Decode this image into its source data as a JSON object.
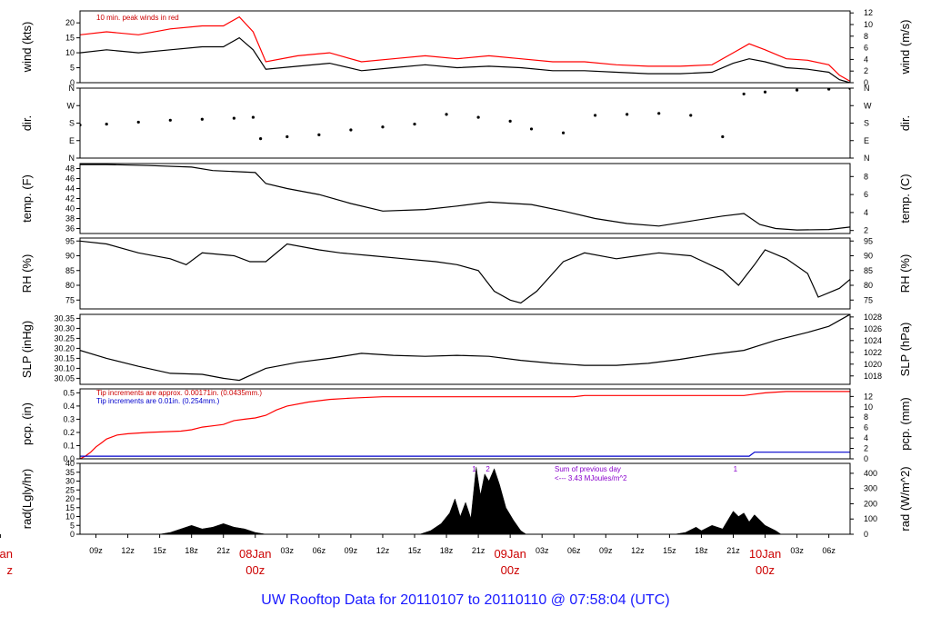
{
  "title": "UW Rooftop Data for 20110107  to  20110110 @ 07:58:04  (UTC)",
  "chart_data": {
    "type": "line",
    "time_axis": {
      "start_hour": 7.5,
      "end_hour": 80,
      "hour_ticks": [
        {
          "h": 9,
          "label": "09z"
        },
        {
          "h": 12,
          "label": "12z"
        },
        {
          "h": 15,
          "label": "15z"
        },
        {
          "h": 18,
          "label": "18z"
        },
        {
          "h": 21,
          "label": "21z"
        },
        {
          "h": 27,
          "label": "03z"
        },
        {
          "h": 30,
          "label": "06z"
        },
        {
          "h": 33,
          "label": "09z"
        },
        {
          "h": 36,
          "label": "12z"
        },
        {
          "h": 39,
          "label": "15z"
        },
        {
          "h": 42,
          "label": "18z"
        },
        {
          "h": 45,
          "label": "21z"
        },
        {
          "h": 51,
          "label": "03z"
        },
        {
          "h": 54,
          "label": "06z"
        },
        {
          "h": 57,
          "label": "09z"
        },
        {
          "h": 60,
          "label": "12z"
        },
        {
          "h": 63,
          "label": "15z"
        },
        {
          "h": 66,
          "label": "18z"
        },
        {
          "h": 69,
          "label": "21z"
        },
        {
          "h": 75,
          "label": "03z"
        },
        {
          "h": 78,
          "label": "06z"
        }
      ],
      "day_labels": [
        {
          "h": 0,
          "date": "Jan",
          "hour": "z"
        },
        {
          "h": 24,
          "date": "08Jan",
          "hour": "00z"
        },
        {
          "h": 48,
          "date": "09Jan",
          "hour": "00z"
        },
        {
          "h": 72,
          "date": "10Jan",
          "hour": "00z"
        }
      ]
    },
    "panels": [
      {
        "id": "wind",
        "left_label": "wind (kts)",
        "right_label": "wind (m/s)",
        "ylim": [
          0,
          24
        ],
        "left_ticks": [
          "0",
          "5",
          "10",
          "15",
          "20"
        ],
        "left_tick_values": [
          0,
          5,
          10,
          15,
          20
        ],
        "right_ticks": [
          "0",
          "2",
          "4",
          "6",
          "8",
          "10",
          "12"
        ],
        "right_tick_values": [
          0,
          3.888,
          7.776,
          11.664,
          15.552,
          19.44,
          23.328
        ],
        "annotation": "10 min. peak winds in red",
        "series": [
          {
            "color": "#000000",
            "x": [
              7.5,
              10,
              13,
              16,
              19,
              21,
              22.5,
              23.8,
              25,
              28,
              31,
              34,
              37,
              40,
              43,
              46,
              49,
              52,
              55,
              58,
              61,
              64,
              67,
              69,
              70.5,
              72,
              74,
              76,
              78,
              79,
              80
            ],
            "y": [
              10,
              11,
              10,
              11,
              12,
              12,
              15,
              11,
              4.5,
              5.5,
              6.5,
              4,
              5,
              6,
              5,
              5.5,
              5,
              4,
              4,
              3.5,
              3,
              3,
              3.5,
              6.5,
              8,
              7,
              5,
              4.5,
              3.5,
              1,
              0
            ]
          },
          {
            "color": "#ff0000",
            "x": [
              7.5,
              10,
              13,
              16,
              19,
              21,
              22.5,
              23.8,
              25,
              28,
              31,
              34,
              37,
              40,
              43,
              46,
              49,
              52,
              55,
              58,
              61,
              64,
              67,
              69,
              70.5,
              72,
              74,
              76,
              78,
              79,
              80
            ],
            "y": [
              16,
              17,
              16,
              18,
              19,
              19,
              22,
              17,
              7,
              9,
              10,
              7,
              8,
              9,
              8,
              9,
              8,
              7,
              7,
              6,
              5.5,
              5.5,
              6,
              10,
              13,
              11,
              8,
              7.5,
              6,
              2.5,
              0.5
            ]
          }
        ]
      },
      {
        "id": "dir",
        "left_label": "dir.",
        "right_label": "dir.",
        "ylim": [
          0,
          360
        ],
        "left_ticks": [
          "N",
          "E",
          "S",
          "W",
          "N"
        ],
        "left_tick_values": [
          0,
          90,
          180,
          270,
          360
        ],
        "right_ticks": [
          "N",
          "E",
          "S",
          "W",
          "N"
        ],
        "right_tick_values": [
          0,
          90,
          180,
          270,
          360
        ],
        "series": [
          {
            "color": "#000000",
            "style": "dots",
            "x": [
              7.5,
              10,
              13,
              16,
              19,
              22,
              23.8,
              24.5,
              27,
              30,
              33,
              36,
              39,
              42,
              45,
              48,
              50,
              53,
              56,
              59,
              62,
              65,
              68,
              70,
              72,
              75,
              78,
              80
            ],
            "y": [
              170,
              175,
              185,
              195,
              200,
              205,
              210,
              100,
              110,
              120,
              145,
              160,
              175,
              225,
              210,
              190,
              150,
              130,
              220,
              225,
              230,
              220,
              110,
              330,
              340,
              350,
              355,
              358
            ]
          }
        ]
      },
      {
        "id": "temp",
        "left_label": "temp. (F)",
        "right_label": "temp. (C)",
        "ylim": [
          35,
          49
        ],
        "left_ticks": [
          "36",
          "38",
          "40",
          "42",
          "44",
          "46",
          "48"
        ],
        "left_tick_values": [
          36,
          38,
          40,
          42,
          44,
          46,
          48
        ],
        "right_ticks": [
          "2",
          "4",
          "6",
          "8"
        ],
        "right_tick_values": [
          35.6,
          39.2,
          42.8,
          46.4
        ],
        "series": [
          {
            "color": "#000000",
            "x": [
              7.5,
              10,
              14,
              18,
              20,
              24,
              25,
              27,
              30,
              33,
              36,
              40,
              43,
              46,
              50,
              53,
              56,
              59,
              62,
              65,
              68,
              70,
              71.5,
              73,
              75,
              78,
              80
            ],
            "y": [
              48.8,
              48.8,
              48.6,
              48.3,
              47.6,
              47.2,
              45,
              44,
              42.8,
              41,
              39.5,
              39.8,
              40.5,
              41.3,
              40.8,
              39.5,
              38,
              37,
              36.5,
              37.5,
              38.5,
              39,
              36.8,
              36,
              35.7,
              35.8,
              36.3
            ]
          }
        ]
      },
      {
        "id": "rh",
        "left_label": "RH (%)",
        "right_label": "RH (%)",
        "ylim": [
          72,
          96
        ],
        "left_ticks": [
          "75",
          "80",
          "85",
          "90",
          "95"
        ],
        "left_tick_values": [
          75,
          80,
          85,
          90,
          95
        ],
        "right_ticks": [
          "75",
          "80",
          "85",
          "90",
          "95"
        ],
        "right_tick_values": [
          75,
          80,
          85,
          90,
          95
        ],
        "series": [
          {
            "color": "#000000",
            "x": [
              7.5,
              10,
              13,
              16,
              17.5,
              19,
              22,
              23.5,
              25,
              27,
              30,
              32,
              35,
              38,
              41,
              43,
              45,
              46.5,
              48,
              49,
              50.5,
              53,
              55,
              58,
              60,
              62,
              65,
              68,
              69.5,
              71,
              72,
              74,
              76,
              77,
              79,
              80
            ],
            "y": [
              95,
              94,
              91,
              89,
              87,
              91,
              90,
              88,
              88,
              94,
              92,
              91,
              90,
              89,
              88,
              87,
              85,
              78,
              75,
              74,
              78,
              88,
              91,
              89,
              90,
              91,
              90,
              85,
              80,
              87,
              92,
              89,
              84,
              76,
              79,
              82
            ]
          }
        ]
      },
      {
        "id": "slp",
        "left_label": "SLP (inHg)",
        "right_label": "SLP (hPa)",
        "ylim": [
          30.02,
          30.37
        ],
        "left_ticks": [
          "30.05",
          "30.10",
          "30.15",
          "30.20",
          "30.25",
          "30.30",
          "30.35"
        ],
        "left_tick_values": [
          30.05,
          30.1,
          30.15,
          30.2,
          30.25,
          30.3,
          30.35
        ],
        "right_ticks": [
          "1018",
          "1020",
          "1022",
          "1024",
          "1026",
          "1028"
        ],
        "right_tick_values": [
          30.062,
          30.121,
          30.18,
          30.239,
          30.298,
          30.357
        ],
        "series": [
          {
            "color": "#000000",
            "x": [
              7.5,
              10,
              13,
              16,
              19,
              21,
              22.5,
              25,
              28,
              31,
              34,
              37,
              40,
              43,
              46,
              49,
              52,
              55,
              58,
              61,
              64,
              67,
              70,
              73,
              76,
              78,
              80
            ],
            "y": [
              30.19,
              30.15,
              30.11,
              30.075,
              30.07,
              30.05,
              30.04,
              30.1,
              30.13,
              30.15,
              30.175,
              30.165,
              30.16,
              30.165,
              30.16,
              30.14,
              30.125,
              30.115,
              30.115,
              30.125,
              30.145,
              30.17,
              30.19,
              30.24,
              30.28,
              30.31,
              30.37
            ]
          }
        ]
      },
      {
        "id": "pcp",
        "left_label": "pcp. (in)",
        "right_label": "pcp. (mm)",
        "ylim": [
          0,
          0.53
        ],
        "left_ticks": [
          "0.0",
          "0.1",
          "0.2",
          "0.3",
          "0.4",
          "0.5"
        ],
        "left_tick_values": [
          0,
          0.1,
          0.2,
          0.3,
          0.4,
          0.5
        ],
        "right_ticks": [
          "0",
          "2",
          "4",
          "6",
          "8",
          "10",
          "12"
        ],
        "right_tick_values": [
          0,
          0.0787,
          0.1575,
          0.2362,
          0.315,
          0.3937,
          0.4724
        ],
        "annotations": [
          {
            "text": "Tip increments are approx. 0.00171in. (0.0435mm.)",
            "color": "red"
          },
          {
            "text": "Tip increments are 0.01in. (0.254mm.)",
            "color": "blue"
          }
        ],
        "series": [
          {
            "color": "#ff0000",
            "x": [
              7.5,
              8,
              8.5,
              9,
              9.5,
              10,
              11,
              12,
              14,
              17,
              18,
              19,
              20,
              21,
              22,
              23,
              24,
              25,
              26,
              27,
              29,
              31,
              33,
              36,
              40,
              45,
              50,
              54,
              55,
              60,
              65,
              70,
              71,
              72,
              74,
              80
            ],
            "y": [
              0,
              0.02,
              0.05,
              0.09,
              0.12,
              0.15,
              0.18,
              0.19,
              0.2,
              0.21,
              0.22,
              0.24,
              0.25,
              0.26,
              0.29,
              0.3,
              0.31,
              0.33,
              0.37,
              0.4,
              0.43,
              0.45,
              0.46,
              0.47,
              0.47,
              0.47,
              0.47,
              0.47,
              0.48,
              0.48,
              0.48,
              0.48,
              0.49,
              0.5,
              0.51,
              0.51
            ]
          },
          {
            "color": "#0000cc",
            "x": [
              7.5,
              70.5,
              71,
              80
            ],
            "y": [
              0.02,
              0.02,
              0.05,
              0.05
            ]
          }
        ]
      },
      {
        "id": "rad",
        "left_label": "rad(Lgly/hr)",
        "right_label": "rad (W/m^2)",
        "ylim": [
          0,
          40
        ],
        "left_ticks": [
          "0",
          "5",
          "10",
          "15",
          "20",
          "25",
          "30",
          "35",
          "40"
        ],
        "left_tick_values": [
          0,
          5,
          10,
          15,
          20,
          25,
          30,
          35,
          40
        ],
        "right_ticks": [
          "0",
          "100",
          "200",
          "300",
          "400"
        ],
        "right_tick_values": [
          0,
          8.6,
          17.2,
          25.8,
          34.4
        ],
        "annotation_lines": [
          "Sum of previous day",
          "<--- 3.43 MJoules/m^2"
        ],
        "day_markers": [
          {
            "h": 44.6,
            "label": "1"
          },
          {
            "h": 45.9,
            "label": "2"
          },
          {
            "h": 69.2,
            "label": "1"
          }
        ],
        "series": [
          {
            "color": "#000000",
            "style": "area",
            "x": [
              15,
              16,
              17,
              18,
              19,
              20,
              21,
              22,
              23,
              24,
              25
            ],
            "y": [
              0,
              1,
              3,
              5,
              3,
              4,
              6,
              4,
              3,
              1,
              0
            ]
          },
          {
            "color": "#000000",
            "style": "area",
            "x": [
              39.5,
              40.5,
              41.5,
              42.3,
              42.8,
              43.3,
              43.8,
              44.3,
              44.8,
              45.2,
              45.6,
              46,
              46.5,
              47,
              47.6,
              48.3,
              49,
              49.5
            ],
            "y": [
              0,
              2,
              6,
              12,
              20,
              10,
              18,
              9,
              38,
              22,
              34,
              30,
              37,
              28,
              15,
              8,
              2,
              0
            ]
          },
          {
            "color": "#000000",
            "style": "area",
            "x": [
              63.5,
              64.5,
              65.5,
              66,
              67,
              68,
              68.5,
              69,
              69.5,
              70,
              70.5,
              71,
              72,
              73,
              73.5
            ],
            "y": [
              0,
              1,
              4,
              2,
              5,
              3,
              8,
              13,
              10,
              12,
              7,
              11,
              5,
              2,
              0
            ]
          }
        ]
      }
    ]
  }
}
